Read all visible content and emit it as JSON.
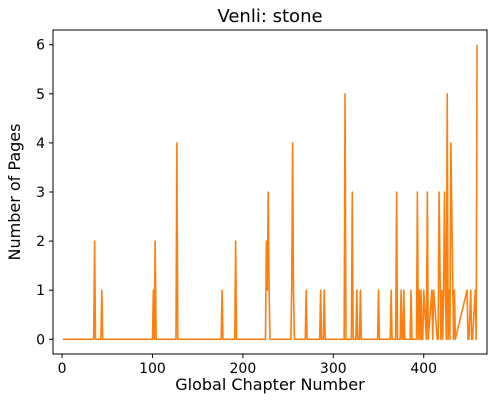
{
  "chart_data": {
    "type": "line",
    "title": "Venli: stone",
    "xlabel": "Global Chapter Number",
    "ylabel": "Number of Pages",
    "xlim": [
      -10,
      470
    ],
    "ylim": [
      -0.3,
      6.3
    ],
    "xticks": [
      0,
      100,
      200,
      300,
      400
    ],
    "yticks": [
      0,
      1,
      2,
      3,
      4,
      5,
      6
    ],
    "grid": false,
    "series": [
      {
        "color": "#ff7f0e",
        "x": [
          1,
          35,
          36,
          37,
          43,
          44,
          45,
          100,
          101,
          102,
          103,
          104,
          126,
          127,
          128,
          176,
          177,
          178,
          191,
          192,
          193,
          225,
          226,
          227,
          228,
          229,
          230,
          253,
          254,
          255,
          256,
          257,
          269,
          270,
          271,
          285,
          286,
          287,
          289,
          290,
          291,
          312,
          313,
          314,
          320,
          321,
          322,
          325,
          326,
          327,
          329,
          330,
          331,
          349,
          350,
          351,
          363,
          364,
          365,
          369,
          370,
          371,
          374,
          375,
          376,
          377,
          378,
          379,
          385,
          386,
          387,
          392,
          393,
          394,
          395,
          396,
          397,
          398,
          399,
          400,
          403,
          404,
          405,
          409,
          410,
          411,
          415,
          416,
          417,
          419,
          420,
          421,
          422,
          423,
          424,
          425,
          426,
          427,
          428,
          429,
          430,
          433,
          434,
          435,
          448,
          449,
          450,
          452,
          453,
          454,
          457,
          458,
          459
        ],
        "y": [
          0,
          0,
          2,
          0,
          0,
          1,
          0,
          0,
          1,
          0,
          2,
          0,
          0,
          4,
          0,
          0,
          1,
          0,
          0,
          2,
          0,
          0,
          2,
          1,
          3,
          1,
          0,
          0,
          1,
          4,
          1,
          0,
          0,
          1,
          0,
          0,
          1,
          0,
          0,
          1,
          0,
          0,
          5,
          0,
          0,
          3,
          0,
          0,
          1,
          0,
          0,
          1,
          0,
          0,
          1,
          0,
          0,
          1,
          0,
          0,
          3,
          0,
          0,
          1,
          0,
          0,
          1,
          0,
          0,
          1,
          0,
          0,
          3,
          0,
          1,
          0,
          1,
          0,
          0,
          1,
          0,
          3,
          0,
          1,
          0,
          1,
          0,
          0,
          3,
          0,
          1,
          0,
          1,
          3,
          1,
          0,
          5,
          0,
          1,
          0,
          4,
          0,
          1,
          0,
          1,
          0,
          0,
          1,
          0,
          0,
          1,
          0,
          6
        ]
      }
    ]
  }
}
